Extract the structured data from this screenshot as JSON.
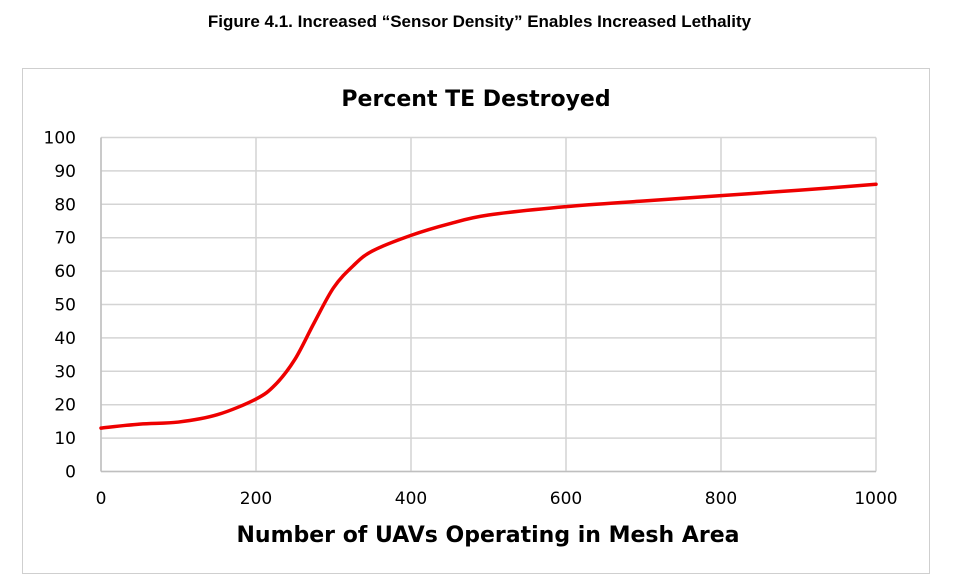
{
  "figure_title": "Figure 4.1. Increased “Sensor Density” Enables Increased Lethality",
  "chart_data": {
    "type": "line",
    "title": "Percent TE Destroyed",
    "xlabel": "Number of UAVs Operating in Mesh Area",
    "ylabel": "",
    "xlim": [
      0,
      1000
    ],
    "ylim": [
      0,
      100
    ],
    "xticks": [
      0,
      200,
      400,
      600,
      800,
      1000
    ],
    "yticks": [
      0,
      10,
      20,
      30,
      40,
      50,
      60,
      70,
      80,
      90,
      100
    ],
    "grid": true,
    "series": [
      {
        "name": "Percent TE Destroyed",
        "color": "#ee0000",
        "x": [
          0,
          50,
          100,
          150,
          200,
          225,
          250,
          275,
          300,
          325,
          350,
          400,
          450,
          500,
          600,
          700,
          800,
          900,
          1000
        ],
        "y": [
          13.0,
          14.2,
          14.8,
          17.0,
          21.7,
          26.0,
          33.5,
          44.5,
          55.0,
          61.5,
          66.0,
          70.7,
          74.2,
          76.8,
          79.3,
          81.0,
          82.6,
          84.2,
          86.0
        ]
      }
    ]
  }
}
